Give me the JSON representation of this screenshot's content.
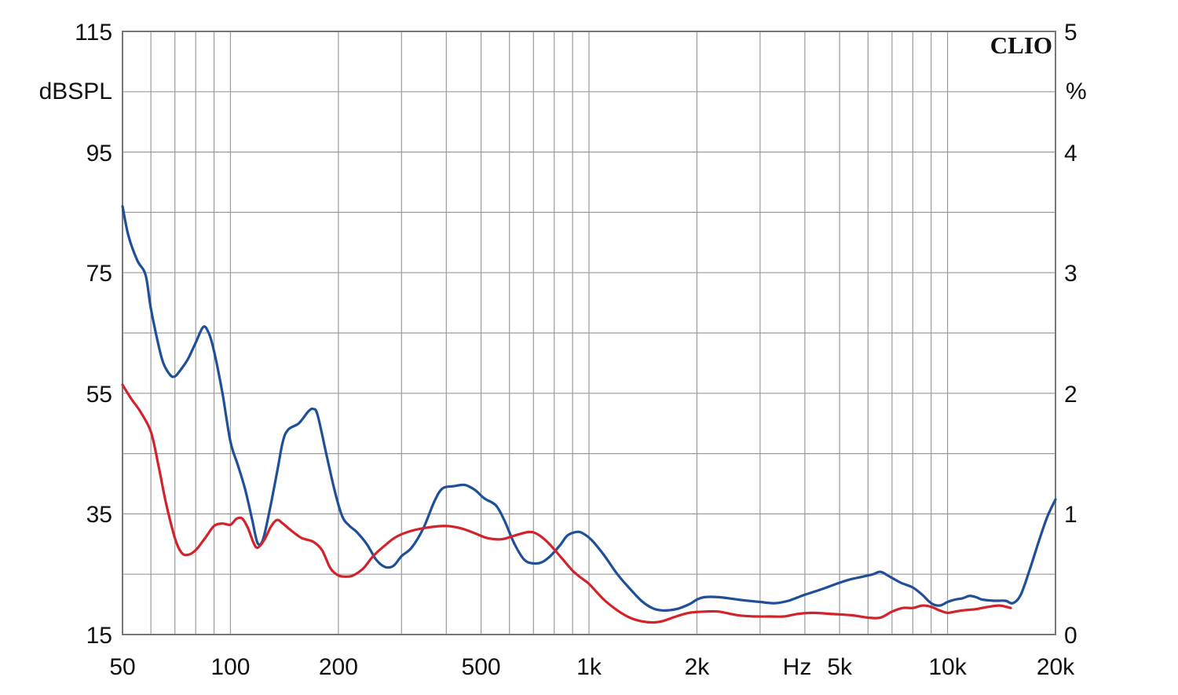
{
  "chart_data": {
    "type": "line",
    "brand_label": "CLIO",
    "x_scale": "log",
    "xlim": [
      50,
      20000
    ],
    "x_tick_values": [
      50,
      100,
      200,
      500,
      1000,
      2000,
      5000,
      10000,
      20000
    ],
    "x_tick_labels": [
      "50",
      "100",
      "200",
      "500",
      "1k",
      "2k",
      "5k",
      "10k",
      "20k"
    ],
    "x_unit": "Hz",
    "y_left": {
      "unit": "dBSPL",
      "ylim": [
        15,
        115
      ],
      "ticks": [
        "115",
        "95",
        "75",
        "55",
        "35",
        "15"
      ]
    },
    "y_right": {
      "unit": "%",
      "ylim": [
        0,
        5
      ],
      "ticks": [
        "5",
        "4",
        "3",
        "2",
        "1",
        "0"
      ]
    },
    "grid": true,
    "series": [
      {
        "color": "#1f4f97",
        "axis": "right",
        "points": [
          [
            50,
            3.55
          ],
          [
            52,
            3.3
          ],
          [
            55,
            3.1
          ],
          [
            58,
            2.98
          ],
          [
            60,
            2.7
          ],
          [
            63,
            2.4
          ],
          [
            65,
            2.25
          ],
          [
            68,
            2.15
          ],
          [
            70,
            2.14
          ],
          [
            72,
            2.18
          ],
          [
            76,
            2.28
          ],
          [
            80,
            2.42
          ],
          [
            84,
            2.55
          ],
          [
            87,
            2.5
          ],
          [
            90,
            2.35
          ],
          [
            95,
            2.0
          ],
          [
            100,
            1.6
          ],
          [
            105,
            1.4
          ],
          [
            110,
            1.2
          ],
          [
            115,
            0.95
          ],
          [
            119,
            0.76
          ],
          [
            123,
            0.78
          ],
          [
            128,
            1.0
          ],
          [
            135,
            1.35
          ],
          [
            140,
            1.6
          ],
          [
            145,
            1.7
          ],
          [
            155,
            1.75
          ],
          [
            165,
            1.85
          ],
          [
            170,
            1.87
          ],
          [
            175,
            1.82
          ],
          [
            185,
            1.5
          ],
          [
            195,
            1.2
          ],
          [
            205,
            0.98
          ],
          [
            215,
            0.9
          ],
          [
            225,
            0.85
          ],
          [
            240,
            0.75
          ],
          [
            255,
            0.62
          ],
          [
            270,
            0.56
          ],
          [
            285,
            0.57
          ],
          [
            300,
            0.65
          ],
          [
            320,
            0.72
          ],
          [
            345,
            0.88
          ],
          [
            370,
            1.1
          ],
          [
            390,
            1.21
          ],
          [
            420,
            1.23
          ],
          [
            450,
            1.24
          ],
          [
            480,
            1.2
          ],
          [
            510,
            1.13
          ],
          [
            550,
            1.07
          ],
          [
            580,
            0.95
          ],
          [
            620,
            0.75
          ],
          [
            660,
            0.62
          ],
          [
            700,
            0.59
          ],
          [
            740,
            0.6
          ],
          [
            780,
            0.65
          ],
          [
            830,
            0.74
          ],
          [
            870,
            0.82
          ],
          [
            920,
            0.85
          ],
          [
            960,
            0.84
          ],
          [
            1020,
            0.78
          ],
          [
            1100,
            0.66
          ],
          [
            1200,
            0.5
          ],
          [
            1300,
            0.38
          ],
          [
            1400,
            0.28
          ],
          [
            1500,
            0.22
          ],
          [
            1600,
            0.2
          ],
          [
            1750,
            0.21
          ],
          [
            1900,
            0.25
          ],
          [
            2000,
            0.29
          ],
          [
            2100,
            0.31
          ],
          [
            2300,
            0.31
          ],
          [
            2600,
            0.29
          ],
          [
            3000,
            0.27
          ],
          [
            3300,
            0.26
          ],
          [
            3600,
            0.28
          ],
          [
            4000,
            0.33
          ],
          [
            4500,
            0.38
          ],
          [
            5000,
            0.43
          ],
          [
            5400,
            0.46
          ],
          [
            5800,
            0.48
          ],
          [
            6200,
            0.5
          ],
          [
            6500,
            0.52
          ],
          [
            6900,
            0.48
          ],
          [
            7400,
            0.43
          ],
          [
            8000,
            0.39
          ],
          [
            8500,
            0.33
          ],
          [
            9000,
            0.26
          ],
          [
            9500,
            0.24
          ],
          [
            10000,
            0.27
          ],
          [
            10500,
            0.29
          ],
          [
            11000,
            0.3
          ],
          [
            11500,
            0.32
          ],
          [
            12000,
            0.31
          ],
          [
            12500,
            0.29
          ],
          [
            13500,
            0.28
          ],
          [
            14500,
            0.28
          ],
          [
            15200,
            0.26
          ],
          [
            16000,
            0.33
          ],
          [
            17000,
            0.55
          ],
          [
            18000,
            0.78
          ],
          [
            19000,
            0.98
          ],
          [
            20000,
            1.12
          ]
        ]
      },
      {
        "color": "#d2232a",
        "axis": "right",
        "points": [
          [
            50,
            2.07
          ],
          [
            53,
            1.95
          ],
          [
            56,
            1.85
          ],
          [
            60,
            1.68
          ],
          [
            63,
            1.4
          ],
          [
            66,
            1.1
          ],
          [
            70,
            0.8
          ],
          [
            73,
            0.68
          ],
          [
            76,
            0.66
          ],
          [
            80,
            0.7
          ],
          [
            85,
            0.8
          ],
          [
            90,
            0.9
          ],
          [
            95,
            0.92
          ],
          [
            100,
            0.91
          ],
          [
            104,
            0.96
          ],
          [
            108,
            0.96
          ],
          [
            112,
            0.88
          ],
          [
            116,
            0.76
          ],
          [
            119,
            0.72
          ],
          [
            124,
            0.78
          ],
          [
            130,
            0.9
          ],
          [
            135,
            0.95
          ],
          [
            140,
            0.92
          ],
          [
            148,
            0.86
          ],
          [
            158,
            0.8
          ],
          [
            170,
            0.77
          ],
          [
            180,
            0.7
          ],
          [
            190,
            0.55
          ],
          [
            200,
            0.49
          ],
          [
            210,
            0.48
          ],
          [
            220,
            0.49
          ],
          [
            235,
            0.55
          ],
          [
            250,
            0.65
          ],
          [
            270,
            0.74
          ],
          [
            290,
            0.81
          ],
          [
            320,
            0.86
          ],
          [
            360,
            0.89
          ],
          [
            400,
            0.9
          ],
          [
            440,
            0.88
          ],
          [
            480,
            0.84
          ],
          [
            520,
            0.8
          ],
          [
            570,
            0.79
          ],
          [
            620,
            0.82
          ],
          [
            680,
            0.85
          ],
          [
            720,
            0.83
          ],
          [
            770,
            0.76
          ],
          [
            830,
            0.65
          ],
          [
            900,
            0.53
          ],
          [
            960,
            0.46
          ],
          [
            1000,
            0.42
          ],
          [
            1100,
            0.29
          ],
          [
            1200,
            0.2
          ],
          [
            1300,
            0.14
          ],
          [
            1400,
            0.11
          ],
          [
            1500,
            0.1
          ],
          [
            1600,
            0.11
          ],
          [
            1750,
            0.15
          ],
          [
            1900,
            0.18
          ],
          [
            2100,
            0.19
          ],
          [
            2300,
            0.19
          ],
          [
            2600,
            0.16
          ],
          [
            2900,
            0.15
          ],
          [
            3200,
            0.15
          ],
          [
            3500,
            0.15
          ],
          [
            3800,
            0.17
          ],
          [
            4200,
            0.18
          ],
          [
            4800,
            0.17
          ],
          [
            5400,
            0.16
          ],
          [
            6000,
            0.14
          ],
          [
            6500,
            0.14
          ],
          [
            7000,
            0.19
          ],
          [
            7500,
            0.22
          ],
          [
            8000,
            0.22
          ],
          [
            8500,
            0.24
          ],
          [
            9000,
            0.23
          ],
          [
            9500,
            0.2
          ],
          [
            10000,
            0.18
          ],
          [
            10500,
            0.19
          ],
          [
            11000,
            0.2
          ],
          [
            12000,
            0.21
          ],
          [
            13000,
            0.23
          ],
          [
            14000,
            0.24
          ],
          [
            15000,
            0.22
          ]
        ]
      }
    ]
  }
}
